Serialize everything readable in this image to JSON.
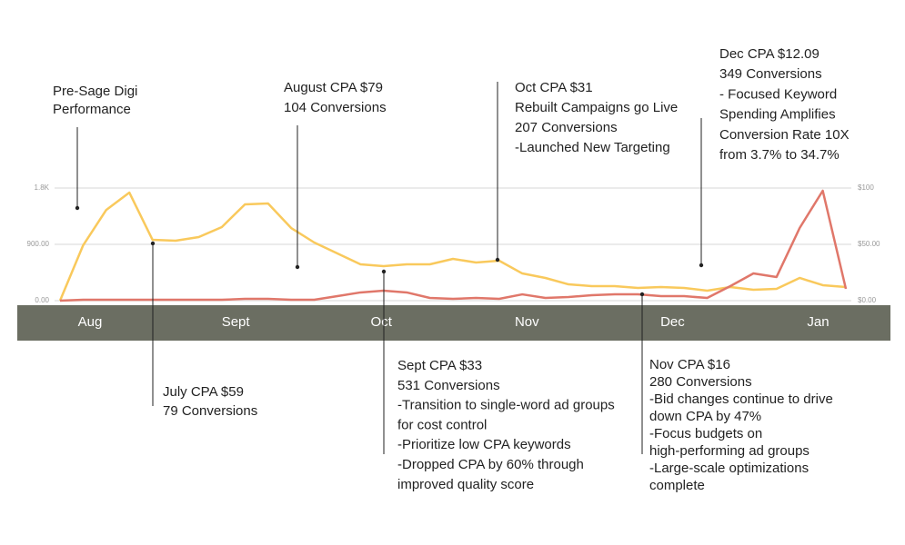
{
  "chart_data": {
    "type": "line",
    "x": [
      0,
      1,
      2,
      3,
      4,
      5,
      6,
      7,
      8,
      9,
      10,
      11,
      12,
      13,
      14,
      15,
      16,
      17,
      18,
      19,
      20,
      21,
      22,
      23,
      24,
      25,
      26,
      27,
      28,
      29,
      30,
      31,
      32,
      33,
      34
    ],
    "xlim": [
      0,
      34
    ],
    "xticks": [
      {
        "value": 1.3,
        "label": "Aug"
      },
      {
        "value": 7.6,
        "label": "Sept"
      },
      {
        "value": 13.9,
        "label": "Oct"
      },
      {
        "value": 20.2,
        "label": "Nov"
      },
      {
        "value": 26.5,
        "label": "Dec"
      },
      {
        "value": 32.8,
        "label": "Jan"
      }
    ],
    "ylim": [
      0,
      1800
    ],
    "yticks": [
      {
        "value": 0,
        "label": "0.00"
      },
      {
        "value": 900,
        "label": "900.00"
      },
      {
        "value": 1800,
        "label": "1.8K"
      }
    ],
    "y2lim": [
      0,
      100
    ],
    "y2ticks": [
      {
        "value": 0,
        "label": "$0.00"
      },
      {
        "value": 50,
        "label": "$50.00"
      },
      {
        "value": 100,
        "label": "$100"
      }
    ],
    "grid": true,
    "series": [
      {
        "color": "#f9c95c",
        "values": [
          0,
          885,
          1450,
          1727,
          973,
          958,
          1016,
          1176,
          1539,
          1553,
          1161,
          929,
          755,
          581,
          552,
          581,
          581,
          668,
          610,
          639,
          435,
          363,
          261,
          232,
          232,
          203,
          218,
          203,
          160,
          218,
          174,
          189,
          363,
          247,
          218
        ]
      },
      {
        "color": "#e0776a",
        "axis": "y2",
        "values": [
          0,
          0.8,
          0.8,
          0.8,
          0.8,
          0.8,
          0.8,
          0.8,
          1.6,
          1.6,
          0.8,
          0.8,
          4,
          7.3,
          8.9,
          7.3,
          2.4,
          1.6,
          2.4,
          1.6,
          5.6,
          2.4,
          3.2,
          4.8,
          5.6,
          5.6,
          4,
          4,
          2.4,
          12.9,
          24.2,
          21,
          64.5,
          97.6,
          10.5
        ]
      }
    ],
    "annotations": [
      [
        "Pre-Sage Digi",
        "Performance"
      ],
      [
        "August CPA $79",
        "104 Conversions"
      ],
      [
        "Oct CPA $31",
        "Rebuilt Campaigns go Live",
        "207 Conversions",
        "-Launched New Targeting"
      ],
      [
        "Dec CPA $12.09",
        "349 Conversions",
        "- Focused Keyword",
        "Spending Amplifies",
        "Conversion Rate 10X",
        "from 3.7% to 34.7%"
      ],
      [
        "July CPA $59",
        "79 Conversions"
      ],
      [
        "Sept CPA $33",
        "531 Conversions",
        "-Transition to single-word ad groups",
        "for cost control",
        "-Prioritize low CPA keywords",
        "-Dropped CPA by 60% through",
        "improved quality score"
      ],
      [
        "Nov CPA $16",
        "280 Conversions",
        "-Bid changes continue to drive",
        "down CPA by 47%",
        "-Focus budgets on",
        "high-performing ad groups",
        "-Large-scale optimizations",
        "complete"
      ]
    ]
  }
}
